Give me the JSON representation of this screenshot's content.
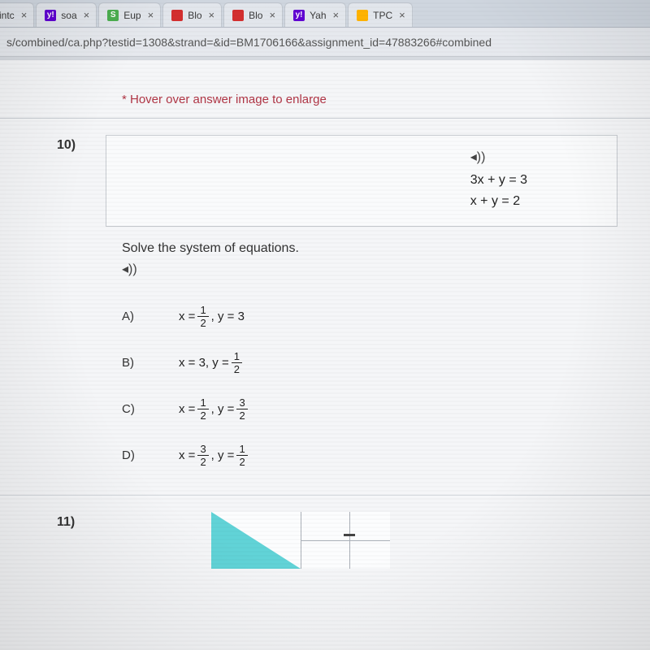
{
  "tabs": [
    {
      "label": "intc",
      "fav": "",
      "favClass": ""
    },
    {
      "label": "soa",
      "fav": "y!",
      "favClass": "fav-y"
    },
    {
      "label": "Eup",
      "fav": "S",
      "favClass": "fav-s"
    },
    {
      "label": "Blo",
      "fav": "",
      "favClass": "fav-m"
    },
    {
      "label": "Blo",
      "fav": "",
      "favClass": "fav-m"
    },
    {
      "label": "Yah",
      "fav": "y!",
      "favClass": "fav-y"
    },
    {
      "label": "TPC",
      "fav": "",
      "favClass": "fav-wm"
    }
  ],
  "url": "s/combined/ca.php?testid=1308&strand=&id=BM1706166&assignment_id=47883266#combined",
  "hint": "* Hover over answer image to enlarge",
  "q10": {
    "number": "10)",
    "eq1": "3x + y = 3",
    "eq2": "x + y = 2",
    "instruction": "Solve the system of equations.",
    "answers": {
      "A": {
        "letter": "A)",
        "prefix": "x = ",
        "f1n": "1",
        "f1d": "2",
        "mid": ", y = 3"
      },
      "B": {
        "letter": "B)",
        "prefix": "x = 3, y = ",
        "f1n": "1",
        "f1d": "2"
      },
      "C": {
        "letter": "C)",
        "prefix": "x = ",
        "f1n": "1",
        "f1d": "2",
        "mid": ", y = ",
        "f2n": "3",
        "f2d": "2"
      },
      "D": {
        "letter": "D)",
        "prefix": "x = ",
        "f1n": "3",
        "f1d": "2",
        "mid": ", y = ",
        "f2n": "1",
        "f2d": "2"
      }
    }
  },
  "q11": {
    "number": "11)"
  },
  "colors": {
    "hint": "#b03545",
    "triangle": "#2ec4c9"
  }
}
